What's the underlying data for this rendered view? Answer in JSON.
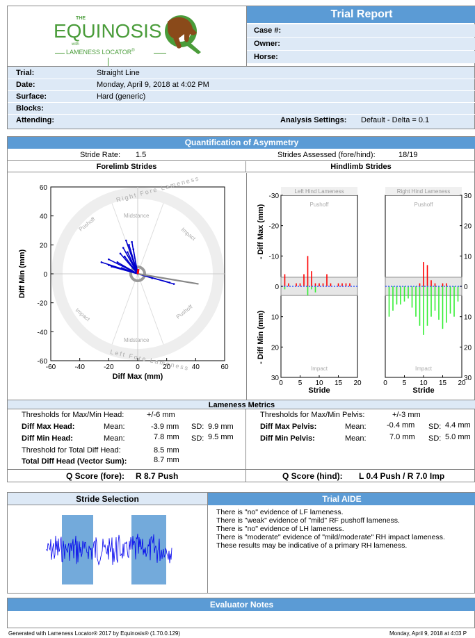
{
  "brand": {
    "the": "THE",
    "name": "EQUINOSIS",
    "with": "with",
    "product": "LAMENESS LOCATOR",
    "tm": "®"
  },
  "report": {
    "title": "Trial Report",
    "case_label": "Case #:",
    "owner_label": "Owner:",
    "horse_label": "Horse:"
  },
  "trial_info": {
    "trial_label": "Trial:",
    "trial_value": "Straight Line",
    "date_label": "Date:",
    "date_value": "Monday, April 9, 2018 at 4:02 PM",
    "surface_label": "Surface:",
    "surface_value": "Hard (generic)",
    "blocks_label": "Blocks:",
    "attending_label": "Attending:",
    "analysis_label": "Analysis Settings:",
    "analysis_value": "Default - Delta = 0.1"
  },
  "asymmetry": {
    "title": "Quantification of Asymmetry",
    "stride_rate_label": "Stride Rate:",
    "stride_rate_value": "1.5",
    "strides_assessed_label": "Strides Assessed (fore/hind):",
    "strides_assessed_value": "18/19",
    "forelimb_title": "Forelimb Strides",
    "hindlimb_title": "Hindlimb Strides"
  },
  "colors": {
    "header_blue": "#5b9bd5",
    "row_blue": "#dde9f6",
    "bar_red": "#ff0000",
    "bar_green": "#33ee33",
    "vector_blue": "#0000cc"
  },
  "chart_data": [
    {
      "type": "scatter",
      "title": "",
      "xlabel": "Diff Max (mm)",
      "ylabel": "Diff Min (mm)",
      "xlim": [
        -60,
        60
      ],
      "ylim": [
        -60,
        60
      ],
      "x_ticks": [
        "-60",
        "-40",
        "-20",
        "0",
        "20",
        "40",
        "60"
      ],
      "y_ticks": [
        "60",
        "40",
        "20",
        "0",
        "-20",
        "-40",
        "-60"
      ],
      "zone_labels": [
        "Right Fore Lameness",
        "Left Fore Lameness",
        "Midstance",
        "Midstance",
        "Impact",
        "Impact",
        "Pushoff",
        "Pushoff"
      ],
      "vectors": [
        [
          -8,
          23
        ],
        [
          -6,
          20
        ],
        [
          -10,
          18
        ],
        [
          -7,
          15
        ],
        [
          -12,
          14
        ],
        [
          -20,
          10
        ],
        [
          -14,
          8
        ],
        [
          -25,
          8
        ],
        [
          -18,
          5
        ],
        [
          -9,
          12
        ],
        [
          -4,
          22
        ],
        [
          -3,
          17
        ],
        [
          10,
          -3
        ],
        [
          22,
          -6
        ],
        [
          25,
          -7
        ],
        [
          -20,
          6
        ],
        [
          -5,
          10
        ],
        [
          -11,
          4
        ]
      ],
      "mean_vector": [
        42,
        -7
      ]
    },
    {
      "type": "bar",
      "title": "Left Hind Lameness",
      "xlabel": "Stride",
      "ylabel_top": "- Diff Max (mm)",
      "ylabel_bottom": "- Diff Min (mm)",
      "xlim": [
        0,
        20
      ],
      "ylim": [
        -30,
        30
      ],
      "x_ticks": [
        "0",
        "5",
        "10",
        "15",
        "20"
      ],
      "y_ticks": [
        "-30",
        "-20",
        "-10",
        "0",
        "10",
        "20",
        "30"
      ],
      "zone_top": "Pushoff",
      "zone_bottom": "Impact",
      "series": [
        {
          "values": [
            4,
            1,
            0,
            1,
            1,
            4,
            10,
            5,
            1,
            1,
            1,
            4,
            1,
            0,
            1,
            1,
            1,
            1,
            0
          ]
        },
        {
          "values": [
            -1,
            0,
            0,
            0,
            0,
            0,
            -3,
            -1,
            -2,
            0,
            0,
            0,
            0,
            0,
            0,
            0,
            0,
            0,
            0
          ]
        }
      ]
    },
    {
      "type": "bar",
      "title": "Right Hind Lameness",
      "xlabel": "Stride",
      "ylabel_top": "+ Diff Max (mm)",
      "ylabel_bottom": "+ Diff Min (mm)",
      "xlim": [
        0,
        20
      ],
      "ylim": [
        30,
        -30
      ],
      "x_ticks": [
        "0",
        "5",
        "10",
        "15",
        "20"
      ],
      "y_ticks": [
        "30",
        "20",
        "10",
        "0",
        "10",
        "20",
        "30"
      ],
      "zone_top": "Pushoff",
      "zone_bottom": "Impact",
      "series": [
        {
          "values": [
            0,
            0,
            0,
            0,
            0,
            0,
            0,
            0,
            1,
            8,
            7,
            2,
            1,
            0,
            1,
            1,
            0,
            0,
            0
          ]
        },
        {
          "values": [
            -10,
            -8,
            -6,
            -6,
            -5,
            -4,
            -7,
            -10,
            -13,
            -16,
            -13,
            -10,
            -8,
            -11,
            -14,
            -12,
            -9,
            -10,
            -5
          ]
        }
      ]
    }
  ],
  "metrics": {
    "title": "Lameness Metrics",
    "left": {
      "threshold_label": "Thresholds for Max/Min Head:",
      "threshold_value": "+/-6 mm",
      "rows": [
        {
          "label": "Diff Max Head:",
          "mean_label": "Mean:",
          "mean": "-3.9 mm",
          "sd_label": "SD:",
          "sd": "9.9 mm"
        },
        {
          "label": "Diff Min Head:",
          "mean_label": "Mean:",
          "mean": "7.8 mm",
          "sd_label": "SD:",
          "sd": "9.5 mm"
        }
      ],
      "total_threshold_label": "Threshold for Total Diff Head:",
      "total_threshold_value": "8.5 mm",
      "total_label": "Total Diff Head (Vector Sum):",
      "total_value": "8.7 mm"
    },
    "right": {
      "threshold_label": "Thresholds for Max/Min Pelvis:",
      "threshold_value": "+/-3 mm",
      "rows": [
        {
          "label": "Diff Max Pelvis:",
          "mean_label": "Mean:",
          "mean": "-0.4 mm",
          "sd_label": "SD:",
          "sd": "4.4 mm"
        },
        {
          "label": "Diff Min Pelvis:",
          "mean_label": "Mean:",
          "mean": "7.0 mm",
          "sd_label": "SD:",
          "sd": "5.0 mm"
        }
      ]
    },
    "q_fore_label": "Q Score (fore):",
    "q_fore_value": "R 8.7 Push",
    "q_hind_label": "Q Score (hind):",
    "q_hind_value": "L 0.4 Push / R 7.0 Imp"
  },
  "stride_selection": {
    "title": "Stride Selection"
  },
  "trial_aide": {
    "title": "Trial AIDE",
    "lines": [
      "There is \"no\" evidence of LF lameness.",
      "There is \"weak\" evidence of \"mild\" RF pushoff lameness.",
      "There is \"no\" evidence of LH lameness.",
      "There is \"moderate\" evidence of \"mild/moderate\" RH impact lameness.",
      "These results may be indicative of a primary RH lameness."
    ]
  },
  "notes": {
    "title": "Evaluator Notes"
  },
  "footer": {
    "left": "Generated with Lameness Locator® 2017 by Equinosis® (1.70.0.129)",
    "right": "Monday, April 9, 2018 at 4:03 P"
  }
}
